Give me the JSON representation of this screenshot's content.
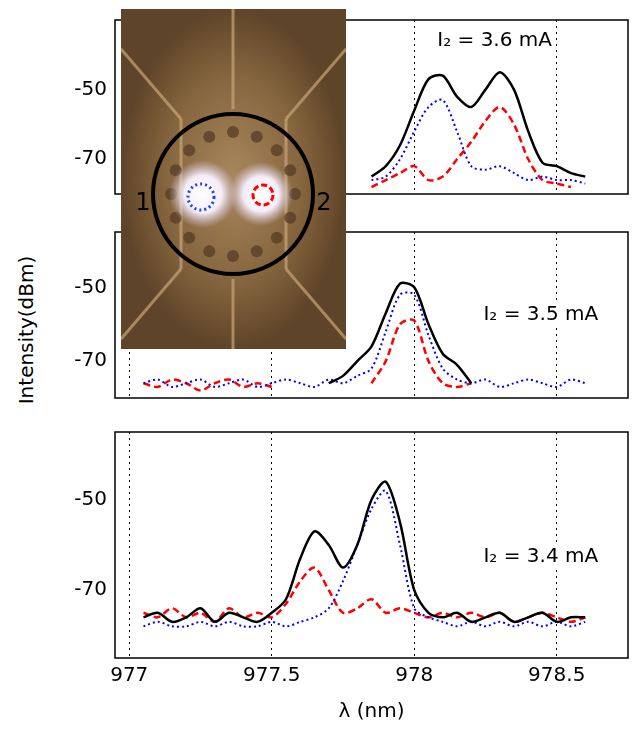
{
  "chart_data": [
    {
      "type": "line",
      "annotation": "I₂ = 3.6 mA",
      "x": [
        977.05,
        977.1,
        977.15,
        977.2,
        977.25,
        977.3,
        977.35,
        977.4,
        977.45,
        977.5,
        977.55,
        977.6,
        977.65,
        977.7,
        977.75,
        977.8,
        977.85,
        977.9,
        977.95,
        978.0,
        978.05,
        978.1,
        978.15,
        978.2,
        978.25,
        978.3,
        978.35,
        978.4,
        978.45,
        978.5,
        978.55,
        978.6
      ],
      "xlim": [
        976.95,
        978.75
      ],
      "xticks": [
        977,
        977.5,
        978,
        978.5
      ],
      "ylim": [
        -80,
        -30
      ],
      "yticks": [
        -70,
        -50
      ],
      "grid": "x",
      "tick_labels": "y",
      "series": [
        {
          "color": "#000000",
          "line_style": "solid",
          "values": [
            null,
            null,
            null,
            null,
            null,
            null,
            null,
            null,
            null,
            null,
            null,
            null,
            null,
            null,
            null,
            null,
            -75,
            -72,
            -66,
            -56,
            -47,
            -46,
            -52,
            -55,
            -50,
            -45,
            -50,
            -62,
            -71,
            -72,
            -74,
            -75
          ]
        },
        {
          "color": "#0000ff",
          "line_style": "dotted",
          "values": [
            null,
            null,
            null,
            null,
            null,
            null,
            null,
            null,
            null,
            null,
            null,
            null,
            null,
            null,
            null,
            null,
            -76,
            -75,
            -70,
            -62,
            -55,
            -53,
            -62,
            -72,
            -73,
            -72,
            -74,
            -76,
            -75,
            -76,
            -76,
            -77
          ]
        },
        {
          "color": "#ff0000",
          "line_style": "dashed",
          "values": [
            null,
            null,
            null,
            null,
            null,
            null,
            null,
            null,
            null,
            null,
            null,
            null,
            null,
            null,
            null,
            null,
            -78,
            -76,
            -74,
            -72,
            -76,
            -75,
            -70,
            -65,
            -59,
            -55,
            -60,
            -70,
            -76,
            -77,
            -78,
            null
          ]
        }
      ]
    },
    {
      "type": "line",
      "annotation": "I₂ = 3.5 mA",
      "y_label": "Intensity(dBm)",
      "x": [
        977.05,
        977.1,
        977.15,
        977.2,
        977.25,
        977.3,
        977.35,
        977.4,
        977.45,
        977.5,
        977.55,
        977.6,
        977.65,
        977.7,
        977.75,
        977.8,
        977.85,
        977.9,
        977.95,
        978.0,
        978.05,
        978.1,
        978.15,
        978.2,
        978.25,
        978.3,
        978.35,
        978.4,
        978.45,
        978.5,
        978.55,
        978.6
      ],
      "xlim": [
        976.95,
        978.75
      ],
      "xticks": [
        977,
        977.5,
        978,
        978.5
      ],
      "ylim": [
        -80,
        -35
      ],
      "yticks": [
        -70,
        -50
      ],
      "grid": "x",
      "tick_labels": "y",
      "series": [
        {
          "color": "#000000",
          "line_style": "solid",
          "values": [
            null,
            null,
            null,
            null,
            null,
            null,
            null,
            null,
            null,
            null,
            null,
            null,
            null,
            -76,
            -74,
            -70,
            -66,
            -57,
            -49,
            -50,
            -60,
            -68,
            -71,
            -76,
            null,
            null,
            null,
            null,
            null,
            null,
            null,
            null
          ]
        },
        {
          "color": "#0000ff",
          "line_style": "dotted",
          "values": [
            -76,
            -75,
            -77,
            -76,
            -75,
            -77,
            -76,
            -75,
            -77,
            -76,
            -75,
            -76,
            -77,
            -75,
            -76,
            -74,
            -72,
            -62,
            -52,
            -52,
            -63,
            -72,
            -75,
            -76,
            -75,
            -77,
            -76,
            -75,
            -76,
            -77,
            -75,
            -76
          ]
        },
        {
          "color": "#ff0000",
          "line_style": "dashed",
          "values": [
            -76,
            -77,
            -75,
            -76,
            -78,
            -76,
            -75,
            -77,
            -76,
            -77,
            null,
            null,
            null,
            null,
            null,
            null,
            -76,
            -70,
            -60,
            -59,
            -70,
            -76,
            -77,
            -76,
            null,
            null,
            null,
            null,
            null,
            null,
            null,
            null
          ]
        }
      ]
    },
    {
      "type": "line",
      "annotation": "I₂ = 3.4 mA",
      "x_label": "λ (nm)",
      "x": [
        977.05,
        977.1,
        977.15,
        977.2,
        977.25,
        977.3,
        977.35,
        977.4,
        977.45,
        977.5,
        977.55,
        977.6,
        977.65,
        977.7,
        977.75,
        977.8,
        977.85,
        977.9,
        977.95,
        978.0,
        978.05,
        978.1,
        978.15,
        978.2,
        978.25,
        978.3,
        978.35,
        978.4,
        978.45,
        978.5,
        978.55,
        978.6
      ],
      "xlim": [
        976.95,
        978.75
      ],
      "xticks": [
        977,
        977.5,
        978,
        978.5
      ],
      "ylim": [
        -85,
        -35
      ],
      "yticks": [
        -70,
        -50
      ],
      "grid": "x",
      "series": [
        {
          "color": "#000000",
          "line_style": "solid",
          "values": [
            -76,
            -75,
            -77,
            -76,
            -74,
            -77,
            -75,
            -76,
            -77,
            -75,
            -72,
            -63,
            -57,
            -60,
            -65,
            -60,
            -50,
            -46,
            -55,
            -70,
            -75,
            -76,
            -75,
            -77,
            -76,
            -75,
            -77,
            -76,
            -75,
            -77,
            -76,
            -76
          ]
        },
        {
          "color": "#0000ff",
          "line_style": "dotted",
          "values": [
            -78,
            -77,
            -78,
            -78,
            -77,
            -78,
            -77,
            -78,
            -78,
            -77,
            -78,
            -77,
            -76,
            -74,
            -68,
            -60,
            -52,
            -48,
            -60,
            -74,
            -76,
            -77,
            -78,
            -77,
            -78,
            -77,
            -78,
            -77,
            -78,
            -77,
            -78,
            -77
          ]
        },
        {
          "color": "#ff0000",
          "line_style": "dashed",
          "values": [
            -75,
            -76,
            -74,
            -76,
            -75,
            -77,
            -74,
            -76,
            -75,
            -76,
            -73,
            -68,
            -65,
            -70,
            -75,
            -74,
            -72,
            -75,
            -74,
            -75,
            -76,
            -75,
            -76,
            -75,
            -76,
            -75,
            -77,
            -76,
            -75,
            -76,
            -77,
            -76
          ]
        }
      ]
    }
  ],
  "inset": {
    "labels": [
      "1",
      "2"
    ]
  }
}
